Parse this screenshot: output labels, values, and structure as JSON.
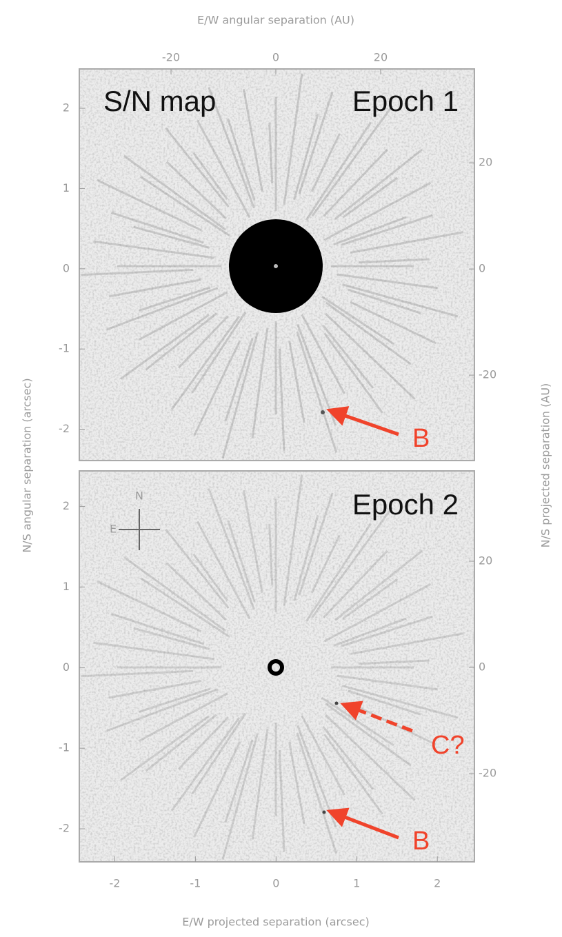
{
  "chart_data": [
    {
      "type": "image",
      "x2label": "E/W angular separation (AU)",
      "ylabel": "N/S angular separation (arcsec)",
      "y2label": "N/S projected separation (AU)",
      "x2lim": [
        -37.5,
        37.9
      ],
      "x2ticks": [
        -20,
        0,
        20
      ],
      "ylim": [
        -2.39,
        2.49
      ],
      "yticks": [
        -2,
        -1,
        0,
        1,
        2
      ],
      "y2lim": [
        -36.1,
        37.7
      ],
      "y2ticks": [
        -20,
        0,
        20
      ],
      "annotations": [
        "S/N map",
        "Epoch 1",
        "B"
      ]
    },
    {
      "type": "image",
      "xlabel": "E/W projected separation (arcsec)",
      "xlim": [
        -2.44,
        2.46
      ],
      "xticks": [
        -2,
        -1,
        0,
        1,
        2
      ],
      "ylim": [
        -2.41,
        2.44
      ],
      "yticks": [
        -2,
        -1,
        0,
        1,
        2
      ],
      "y2lim": [
        -36.6,
        37.0
      ],
      "y2ticks": [
        -20,
        0,
        20
      ],
      "annotations": [
        "Epoch 2",
        "C?",
        "B",
        "N",
        "E"
      ]
    }
  ]
}
